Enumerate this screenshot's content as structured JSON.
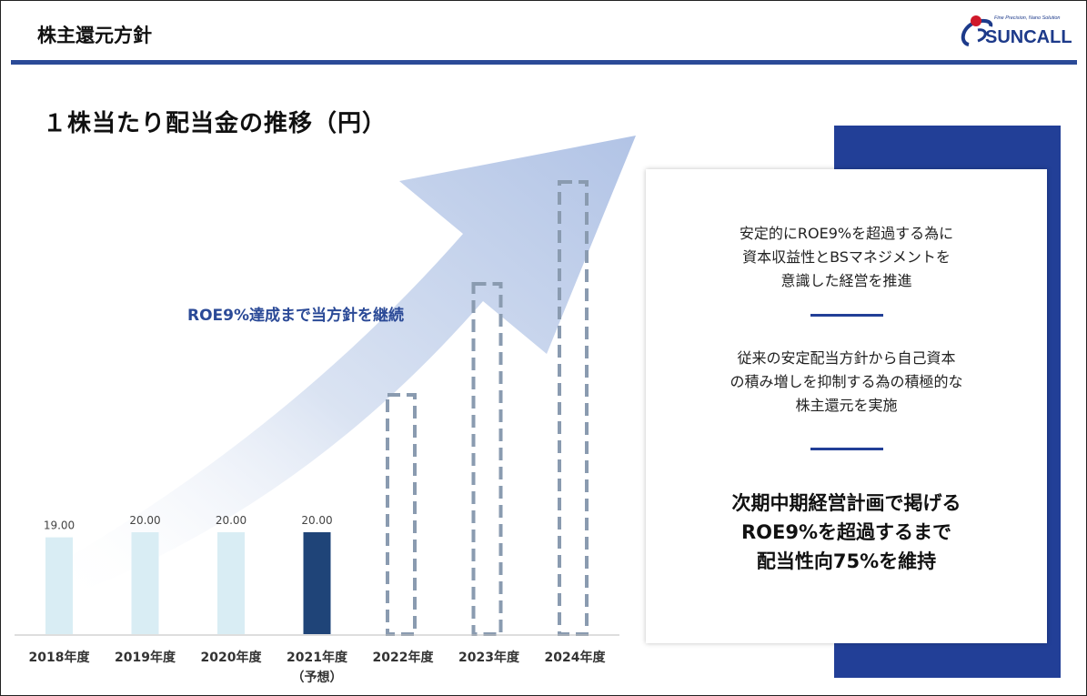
{
  "header": {
    "title": "株主還元方針",
    "logo_text": "SUNCALL",
    "logo_tagline": "Fine Precision, Nano Solution",
    "accent_color": "#2b4a97"
  },
  "chart_title": "１株当たり配当金の推移（円）",
  "roe_note": "ROE9%達成まで当方針を継続",
  "chart_data": {
    "type": "bar",
    "title": "１株当たり配当金の推移（円）",
    "categories": [
      "2018年度",
      "2019年度",
      "2020年度",
      "2021年度\n（予想）",
      "2022年度",
      "2023年度",
      "2024年度"
    ],
    "values": [
      19.0,
      20.0,
      20.0,
      20.0,
      null,
      null,
      null
    ],
    "value_labels": [
      "19.00",
      "20.00",
      "20.00",
      "20.00",
      "",
      "",
      ""
    ],
    "bar_styles": [
      "actual",
      "actual",
      "actual",
      "forecast",
      "planned-dashed",
      "planned-dashed",
      "planned-dashed"
    ],
    "colors": {
      "actual": "#d9edf4",
      "forecast": "#1f4478",
      "planned": "#8a9bb0"
    },
    "grid": false,
    "legend": "none"
  },
  "panel": {
    "para1": [
      "安定的にROE9%を超過する為に",
      "資本収益性とBSマネジメントを",
      "意識した経営を推進"
    ],
    "para2": [
      "従来の安定配当方針から自己資本",
      "の積み増しを抑制する為の積極的な",
      "株主還元を実施"
    ],
    "emphasis": [
      "次期中期経営計画で掲げる",
      "ROE9%を超過するまで",
      "配当性向75%を維持"
    ]
  }
}
